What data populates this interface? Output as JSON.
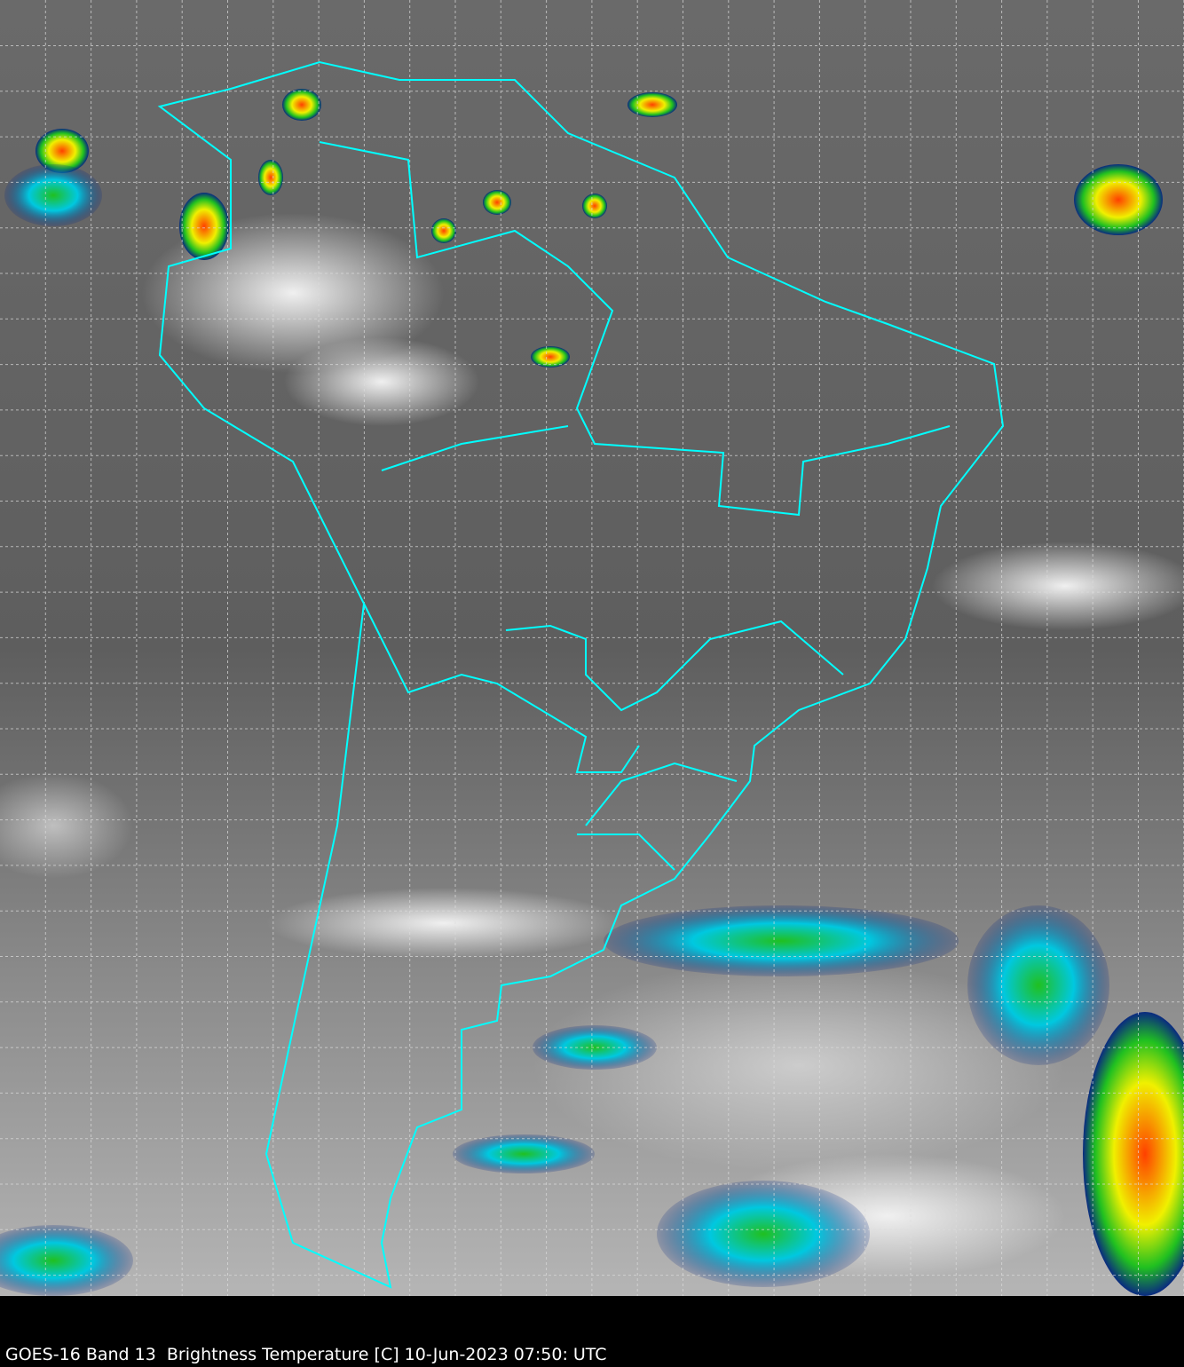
{
  "caption": "GOES-16 Band 13  Brightness Temperature [C] 10-Jun-2023 07:50: UTC",
  "colors": {
    "border": "#00ffff",
    "grid": "#dddddd",
    "background": "#000000",
    "cold_cloud_scale": [
      "#0a2a80",
      "#00e0ff",
      "#20c020",
      "#f0f000",
      "#ff6000",
      "#c00000"
    ]
  },
  "map": {
    "region": "South America",
    "grid": true,
    "borders": true
  }
}
